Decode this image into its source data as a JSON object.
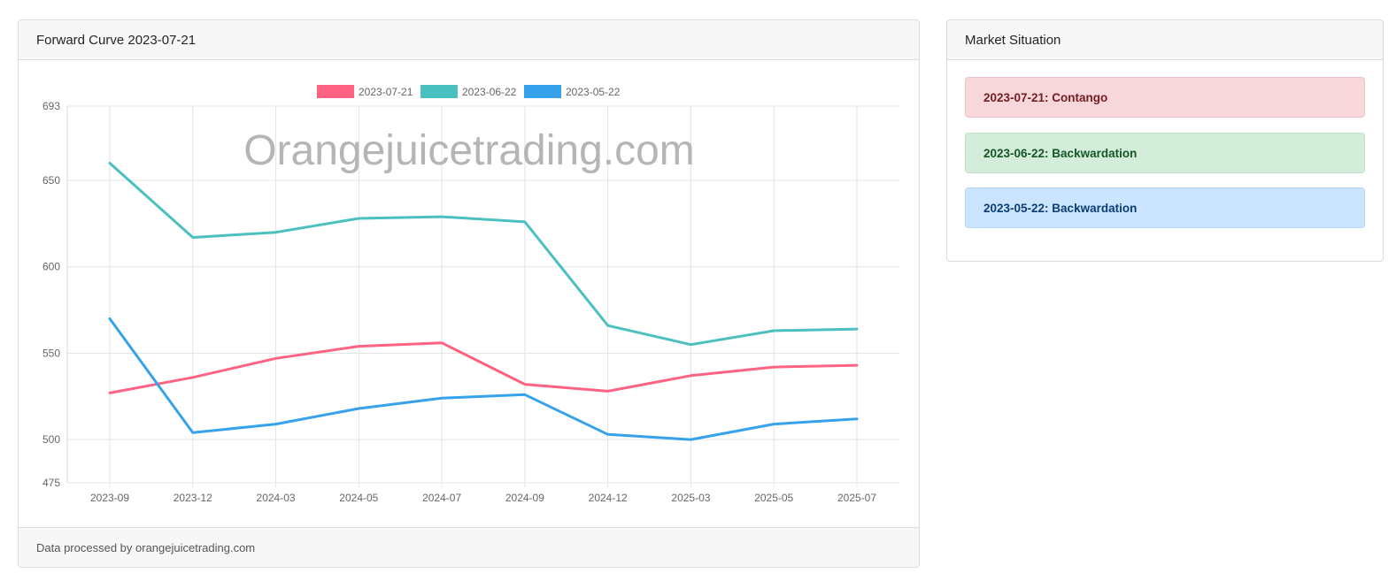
{
  "chart_card": {
    "title": "Forward Curve 2023-07-21",
    "footer": "Data processed by orangejuicetrading.com",
    "watermark": "Orangejuicetrading.com"
  },
  "market_card": {
    "title": "Market Situation",
    "alerts": [
      {
        "text": "2023-07-21: Contango",
        "color": "#f8d7da"
      },
      {
        "text": "2023-06-22: Backwardation",
        "color": "#d4edda"
      },
      {
        "text": "2023-05-22: Backwardation",
        "color": "#cce5ff"
      }
    ]
  },
  "chart_data": {
    "type": "line",
    "categories": [
      "2023-09",
      "2023-12",
      "2024-03",
      "2024-05",
      "2024-07",
      "2024-09",
      "2024-12",
      "2025-03",
      "2025-05",
      "2025-07"
    ],
    "ylim": [
      475,
      693
    ],
    "yticks": [
      475,
      500,
      550,
      600,
      650,
      693
    ],
    "grid": true,
    "legend_position": "top",
    "series": [
      {
        "name": "2023-07-21",
        "color": "#ff6384",
        "values": [
          527,
          536,
          547,
          554,
          556,
          532,
          528,
          537,
          542,
          543
        ]
      },
      {
        "name": "2023-06-22",
        "color": "#4bc0c0",
        "values": [
          660,
          617,
          620,
          628,
          629,
          626,
          566,
          555,
          563,
          564
        ]
      },
      {
        "name": "2023-05-22",
        "color": "#36a2eb",
        "values": [
          570,
          504,
          509,
          518,
          524,
          526,
          503,
          500,
          509,
          512
        ]
      }
    ]
  }
}
